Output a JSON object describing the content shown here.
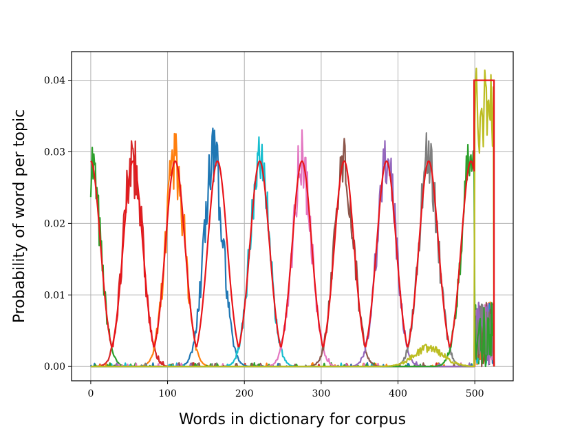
{
  "chart_data": {
    "type": "line",
    "title": "",
    "xlabel": "Words in dictionary for corpus",
    "ylabel": "Probability of word per topic",
    "xlim": [
      -25,
      550
    ],
    "ylim": [
      -0.002,
      0.044
    ],
    "xticks": [
      0,
      100,
      200,
      300,
      400,
      500
    ],
    "xtick_labels": [
      "0",
      "100",
      "200",
      "300",
      "400",
      "500"
    ],
    "yticks": [
      0.0,
      0.01,
      0.02,
      0.03,
      0.04
    ],
    "ytick_labels": [
      "0.00",
      "0.01",
      "0.02",
      "0.03",
      "0.04"
    ],
    "grid": true,
    "legend": "none",
    "reference_curve": {
      "color": "#e8151a",
      "points": [
        [
          0,
          0.027
        ],
        [
          27,
          0.0
        ],
        [
          55,
          0.0287
        ],
        [
          110,
          0.0287
        ],
        [
          165,
          0.0287
        ],
        [
          220,
          0.0287
        ],
        [
          275,
          0.0287
        ],
        [
          330,
          0.0287
        ],
        [
          385,
          0.0287
        ],
        [
          440,
          0.0287
        ],
        [
          495,
          0.0287
        ],
        [
          500,
          0.04
        ],
        [
          525,
          0.04
        ]
      ]
    },
    "series": [
      {
        "color": "#2ca02c",
        "peak_x": 0,
        "peak_y": 0.025
      },
      {
        "color": "#d62728",
        "peak_x": 55,
        "peak_y": 0.0315
      },
      {
        "color": "#ff7f0e",
        "peak_x": 110,
        "peak_y": 0.025
      },
      {
        "color": "#1f77b4",
        "peak_x": 160,
        "peak_y": 0.031
      },
      {
        "color": "#17becf",
        "peak_x": 220,
        "peak_y": 0.0275
      },
      {
        "color": "#e377c2",
        "peak_x": 275,
        "peak_y": 0.034
      },
      {
        "color": "#8c564b",
        "peak_x": 330,
        "peak_y": 0.029
      },
      {
        "color": "#9467bd",
        "peak_x": 385,
        "peak_y": 0.026
      },
      {
        "color": "#7f7f7f",
        "peak_x": 440,
        "peak_y": 0.0315
      },
      {
        "color": "#2ca02c",
        "peak_x": 495,
        "peak_y": 0.025
      },
      {
        "color": "#bcbd22",
        "peak_x": 512,
        "peak_y": 0.042
      }
    ]
  }
}
